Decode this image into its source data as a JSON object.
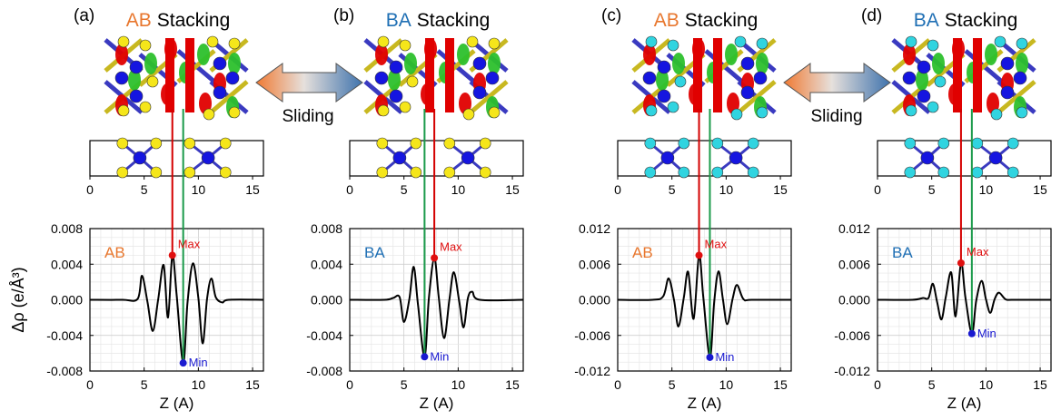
{
  "panels": [
    {
      "letter": "(a)",
      "stack": "AB",
      "word": "Stacking",
      "stack_color": "#e8772e",
      "label_color": "#e8772e",
      "variant": "yellow"
    },
    {
      "letter": "(b)",
      "stack": "BA",
      "word": "Stacking",
      "stack_color": "#1f6fb4",
      "label_color": "#1f6fb4",
      "variant": "yellow"
    },
    {
      "letter": "(c)",
      "stack": "AB",
      "word": "Stacking",
      "stack_color": "#e8772e",
      "label_color": "#e8772e",
      "variant": "cyan"
    },
    {
      "letter": "(d)",
      "stack": "BA",
      "word": "Stacking",
      "stack_color": "#1f6fb4",
      "label_color": "#1f6fb4",
      "variant": "cyan"
    }
  ],
  "arrows": [
    {
      "label": "Sliding"
    },
    {
      "label": "Sliding"
    }
  ],
  "colors": {
    "max_line": "#d40000",
    "min_line": "#1a9a4a",
    "max_marker": "#e01010",
    "min_marker": "#1a1ad0",
    "curve": "#000000",
    "atom_blue": "#1515e0",
    "atom_yellow": "#f5e61a",
    "atom_cyan": "#30d4e0",
    "iso_red": "#e00000",
    "iso_green": "#2cc02c"
  },
  "chart_data": [
    {
      "type": "line",
      "panel": "(a)",
      "series": [
        {
          "name": "AB"
        }
      ],
      "xlabel": "Z (A)",
      "ylabel": "Δρ (e/Å³)",
      "xlim": [
        0,
        16
      ],
      "ylim": [
        -0.008,
        0.008
      ],
      "x_ticks": [
        0,
        5,
        10,
        15
      ],
      "y_ticks": [
        0.008,
        0.004,
        0.0,
        -0.004,
        -0.008
      ],
      "y_tick_labels": [
        "0.008",
        "0.004",
        "0.000",
        "-0.004",
        "-0.008"
      ],
      "structure_axis": {
        "xlim": [
          0,
          16
        ],
        "ticks": [
          0,
          5,
          10,
          15
        ]
      },
      "grid": true,
      "max": {
        "label": "Max",
        "x": 7.6,
        "y": 0.005
      },
      "min": {
        "label": "Min",
        "x": 8.6,
        "y": -0.0071
      },
      "peaks": [
        [
          0,
          0
        ],
        [
          3.0,
          0.0
        ],
        [
          4.4,
          0.0001
        ],
        [
          4.8,
          0.0027
        ],
        [
          5.3,
          -0.0002
        ],
        [
          5.8,
          -0.0035
        ],
        [
          6.3,
          0.0001
        ],
        [
          6.8,
          0.0039
        ],
        [
          7.2,
          -0.002
        ],
        [
          7.6,
          0.005
        ],
        [
          8.0,
          0.0005
        ],
        [
          8.6,
          -0.0071
        ],
        [
          9.0,
          -0.0003
        ],
        [
          9.5,
          0.0041
        ],
        [
          10.0,
          0.0002
        ],
        [
          10.4,
          -0.0049
        ],
        [
          10.8,
          0.0001
        ],
        [
          11.2,
          0.0024
        ],
        [
          11.6,
          0.0003
        ],
        [
          12.2,
          -0.0003
        ],
        [
          12.8,
          0.0
        ],
        [
          16,
          0
        ]
      ]
    },
    {
      "type": "line",
      "panel": "(b)",
      "series": [
        {
          "name": "BA"
        }
      ],
      "xlabel": "Z (A)",
      "ylabel": "",
      "xlim": [
        0,
        16
      ],
      "ylim": [
        -0.008,
        0.008
      ],
      "x_ticks": [
        0,
        5,
        10,
        15
      ],
      "y_ticks": [
        0.008,
        0.004,
        0.0,
        -0.004,
        -0.008
      ],
      "y_tick_labels": [
        "0.008",
        "0.004",
        "0.000",
        "-0.004",
        "-0.008"
      ],
      "structure_axis": {
        "xlim": [
          0,
          16
        ],
        "ticks": [
          0,
          5,
          10,
          15
        ]
      },
      "grid": true,
      "max": {
        "label": "Max",
        "x": 7.8,
        "y": 0.0047
      },
      "min": {
        "label": "Min",
        "x": 6.9,
        "y": -0.0064
      },
      "peaks": [
        [
          0,
          0
        ],
        [
          3.2,
          0.0
        ],
        [
          4.0,
          0.0002
        ],
        [
          4.6,
          0.0003
        ],
        [
          5.0,
          -0.0025
        ],
        [
          5.5,
          0.0001
        ],
        [
          5.9,
          0.0037
        ],
        [
          6.3,
          -0.0006
        ],
        [
          6.9,
          -0.0064
        ],
        [
          7.3,
          0.0002
        ],
        [
          7.8,
          0.0047
        ],
        [
          8.2,
          0.0004
        ],
        [
          8.7,
          -0.0043
        ],
        [
          9.2,
          0.0001
        ],
        [
          9.6,
          0.0031
        ],
        [
          10.1,
          -0.0002
        ],
        [
          10.5,
          -0.0031
        ],
        [
          10.9,
          0.0002
        ],
        [
          11.3,
          0.0009
        ],
        [
          12.0,
          0.0
        ],
        [
          16,
          0
        ]
      ]
    },
    {
      "type": "line",
      "panel": "(c)",
      "series": [
        {
          "name": "AB"
        }
      ],
      "xlabel": "Z (A)",
      "ylabel": "",
      "xlim": [
        0,
        16
      ],
      "ylim": [
        -0.012,
        0.012
      ],
      "x_ticks": [
        0,
        5,
        10,
        15
      ],
      "y_ticks": [
        0.012,
        0.006,
        0.0,
        -0.006,
        -0.012
      ],
      "y_tick_labels": [
        "0.012",
        "0.006",
        "0.000",
        "-0.006",
        "-0.012"
      ],
      "structure_axis": {
        "xlim": [
          0,
          16
        ],
        "ticks": [
          0,
          5,
          10,
          15
        ]
      },
      "grid": true,
      "max": {
        "label": "Max",
        "x": 7.5,
        "y": 0.0075
      },
      "min": {
        "label": "Min",
        "x": 8.5,
        "y": -0.0097
      },
      "peaks": [
        [
          0,
          0
        ],
        [
          3.2,
          0.0
        ],
        [
          4.2,
          0.0006
        ],
        [
          4.7,
          0.0036
        ],
        [
          5.2,
          -0.0001
        ],
        [
          5.6,
          -0.0045
        ],
        [
          6.1,
          0.0004
        ],
        [
          6.5,
          0.0047
        ],
        [
          7.0,
          -0.0032
        ],
        [
          7.5,
          0.0075
        ],
        [
          7.9,
          0.0003
        ],
        [
          8.5,
          -0.0097
        ],
        [
          8.9,
          -0.0003
        ],
        [
          9.3,
          0.0048
        ],
        [
          9.7,
          0.0001
        ],
        [
          10.1,
          -0.0041
        ],
        [
          10.6,
          0.0002
        ],
        [
          11.0,
          0.0025
        ],
        [
          11.6,
          0.0001
        ],
        [
          12.4,
          0.0
        ],
        [
          16,
          0
        ]
      ]
    },
    {
      "type": "line",
      "panel": "(d)",
      "series": [
        {
          "name": "BA"
        }
      ],
      "xlabel": "Z (A)",
      "ylabel": "",
      "xlim": [
        0,
        16
      ],
      "ylim": [
        -0.012,
        0.012
      ],
      "x_ticks": [
        0,
        5,
        10,
        15
      ],
      "y_ticks": [
        0.012,
        0.006,
        0.0,
        -0.006,
        -0.012
      ],
      "y_tick_labels": [
        "0.012",
        "0.006",
        "0.000",
        "-0.006",
        "-0.012"
      ],
      "structure_axis": {
        "xlim": [
          0,
          16
        ],
        "ticks": [
          0,
          5,
          10,
          15
        ]
      },
      "grid": true,
      "max": {
        "label": "Max",
        "x": 7.7,
        "y": 0.0062
      },
      "min": {
        "label": "Min",
        "x": 8.7,
        "y": -0.0057
      },
      "peaks": [
        [
          0,
          0
        ],
        [
          3.2,
          0.0
        ],
        [
          4.2,
          0.0003
        ],
        [
          4.7,
          0.0003
        ],
        [
          5.1,
          0.0027
        ],
        [
          5.5,
          -0.0004
        ],
        [
          5.9,
          -0.0033
        ],
        [
          6.3,
          0.0005
        ],
        [
          6.8,
          0.0046
        ],
        [
          7.2,
          -0.0028
        ],
        [
          7.7,
          0.0062
        ],
        [
          8.1,
          0.0005
        ],
        [
          8.7,
          -0.0057
        ],
        [
          9.1,
          -0.0002
        ],
        [
          9.6,
          0.0032
        ],
        [
          10.0,
          0.0001
        ],
        [
          10.4,
          -0.0022
        ],
        [
          10.8,
          0.0001
        ],
        [
          11.2,
          0.0012
        ],
        [
          11.8,
          0.0001
        ],
        [
          12.5,
          0.0
        ],
        [
          16,
          0
        ]
      ]
    }
  ]
}
